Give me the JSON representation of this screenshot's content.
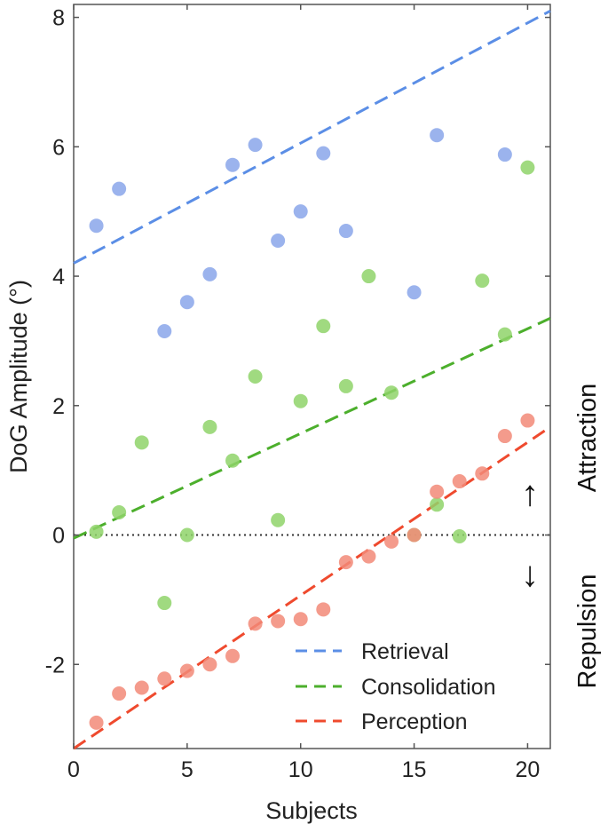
{
  "chart_data": {
    "type": "scatter",
    "xlabel": "Subjects",
    "ylabel": "DoG Amplitude (°)",
    "xlim": [
      0,
      21
    ],
    "ylim": [
      -3.3,
      8.2
    ],
    "xticks": [
      0,
      5,
      10,
      15,
      20
    ],
    "yticks": [
      -2,
      0,
      2,
      4,
      6,
      8
    ],
    "zero_line": true,
    "grid": false,
    "legend_position": "bottom-right",
    "series": [
      {
        "name": "Retrieval",
        "color": "#5b8ee6",
        "point_color": "#8aa6ea",
        "x": [
          1,
          2,
          4,
          5,
          6,
          7,
          8,
          9,
          10,
          11,
          12,
          15,
          16,
          19
        ],
        "y": [
          4.78,
          5.35,
          3.15,
          3.6,
          4.03,
          5.72,
          6.03,
          4.55,
          5.0,
          5.9,
          4.7,
          3.75,
          6.18,
          5.88
        ],
        "fit": {
          "x": [
            0,
            21
          ],
          "y": [
            4.2,
            8.1
          ]
        }
      },
      {
        "name": "Consolidation",
        "color": "#4caf2c",
        "point_color": "#8fd46a",
        "x": [
          1,
          2,
          3,
          4,
          5,
          6,
          7,
          8,
          9,
          10,
          11,
          12,
          13,
          14,
          15,
          16,
          17,
          18,
          19,
          20
        ],
        "y": [
          0.05,
          0.35,
          1.43,
          -1.05,
          0.0,
          1.67,
          1.15,
          2.45,
          0.23,
          2.07,
          3.23,
          2.3,
          4.0,
          2.2,
          0.0,
          0.47,
          -0.02,
          3.93,
          3.1,
          5.68
        ],
        "fit": {
          "x": [
            0,
            21
          ],
          "y": [
            -0.05,
            3.35
          ]
        }
      },
      {
        "name": "Perception",
        "color": "#ef4a2e",
        "point_color": "#f28a78",
        "x": [
          1,
          2,
          3,
          4,
          5,
          6,
          7,
          8,
          9,
          10,
          11,
          12,
          13,
          14,
          15,
          16,
          17,
          18,
          19,
          20
        ],
        "y": [
          -2.9,
          -2.45,
          -2.36,
          -2.22,
          -2.1,
          -2.0,
          -1.87,
          -1.37,
          -1.33,
          -1.3,
          -1.15,
          -0.42,
          -0.33,
          -0.1,
          0.0,
          0.67,
          0.83,
          0.95,
          1.53,
          1.77
        ],
        "fit": {
          "x": [
            0,
            21
          ],
          "y": [
            -3.3,
            1.67
          ]
        }
      }
    ],
    "annotations": {
      "attraction": "Attraction",
      "repulsion": "Repulsion",
      "up_arrow": "↑",
      "down_arrow": "↓"
    }
  }
}
